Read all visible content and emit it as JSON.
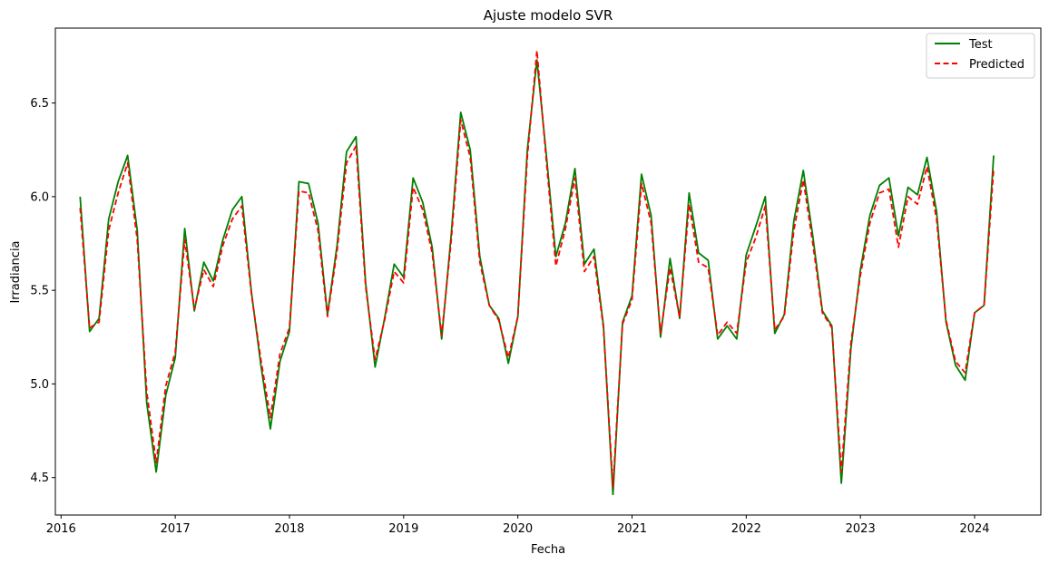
{
  "chart_data": {
    "type": "line",
    "title": "Ajuste modelo SVR",
    "xlabel": "Fecha",
    "ylabel": "Irradiancia",
    "xlim": [
      2015.95,
      2024.58
    ],
    "ylim": [
      4.3,
      6.9
    ],
    "grid": false,
    "legend": "top-right",
    "x_ticks": [
      2016,
      2017,
      2018,
      2019,
      2020,
      2021,
      2022,
      2023,
      2024
    ],
    "x_tick_labels": [
      "2016",
      "2017",
      "2018",
      "2019",
      "2020",
      "2021",
      "2022",
      "2023",
      "2024"
    ],
    "y_ticks": [
      4.5,
      5.0,
      5.5,
      6.0,
      6.5
    ],
    "y_tick_labels": [
      "4.5",
      "5.0",
      "5.5",
      "6.0",
      "6.5"
    ],
    "x": [
      2016.167,
      2016.25,
      2016.333,
      2016.417,
      2016.5,
      2016.583,
      2016.667,
      2016.75,
      2016.833,
      2016.917,
      2017.0,
      2017.083,
      2017.167,
      2017.25,
      2017.333,
      2017.417,
      2017.5,
      2017.583,
      2017.667,
      2017.75,
      2017.833,
      2017.917,
      2018.0,
      2018.083,
      2018.167,
      2018.25,
      2018.333,
      2018.417,
      2018.5,
      2018.583,
      2018.667,
      2018.75,
      2018.833,
      2018.917,
      2019.0,
      2019.083,
      2019.167,
      2019.25,
      2019.333,
      2019.417,
      2019.5,
      2019.583,
      2019.667,
      2019.75,
      2019.833,
      2019.917,
      2020.0,
      2020.083,
      2020.167,
      2020.25,
      2020.333,
      2020.417,
      2020.5,
      2020.583,
      2020.667,
      2020.75,
      2020.833,
      2020.917,
      2021.0,
      2021.083,
      2021.167,
      2021.25,
      2021.333,
      2021.417,
      2021.5,
      2021.583,
      2021.667,
      2021.75,
      2021.833,
      2021.917,
      2022.0,
      2022.083,
      2022.167,
      2022.25,
      2022.333,
      2022.417,
      2022.5,
      2022.583,
      2022.667,
      2022.75,
      2022.833,
      2022.917,
      2023.0,
      2023.083,
      2023.167,
      2023.25,
      2023.333,
      2023.417,
      2023.5,
      2023.583,
      2023.667,
      2023.75,
      2023.833,
      2023.917,
      2024.0,
      2024.083,
      2024.167
    ],
    "series": [
      {
        "name": "Test",
        "color": "#008000",
        "style": "solid",
        "values": [
          6.0,
          5.28,
          5.35,
          5.88,
          6.08,
          6.22,
          5.82,
          4.9,
          4.53,
          4.94,
          5.14,
          5.83,
          5.39,
          5.65,
          5.55,
          5.77,
          5.93,
          6.0,
          5.49,
          5.1,
          4.76,
          5.12,
          5.28,
          6.08,
          6.07,
          5.86,
          5.37,
          5.74,
          6.24,
          6.32,
          5.54,
          5.09,
          5.35,
          5.64,
          5.57,
          6.1,
          5.97,
          5.73,
          5.24,
          5.8,
          6.45,
          6.25,
          5.68,
          5.42,
          5.35,
          5.11,
          5.36,
          6.25,
          6.73,
          6.22,
          5.68,
          5.86,
          6.15,
          5.64,
          5.72,
          5.31,
          4.41,
          5.33,
          5.47,
          6.12,
          5.9,
          5.25,
          5.67,
          5.35,
          6.02,
          5.7,
          5.66,
          5.24,
          5.31,
          5.24,
          5.69,
          5.84,
          6.0,
          5.27,
          5.37,
          5.87,
          6.14,
          5.79,
          5.39,
          5.31,
          4.47,
          5.19,
          5.61,
          5.9,
          6.06,
          6.1,
          5.79,
          6.05,
          6.01,
          6.21,
          5.92,
          5.33,
          5.1,
          5.02,
          5.38,
          5.42,
          6.22
        ]
      },
      {
        "name": "Predicted",
        "color": "#ff0000",
        "style": "dashed",
        "values": [
          5.94,
          5.3,
          5.33,
          5.82,
          6.02,
          6.18,
          5.77,
          4.96,
          4.58,
          4.99,
          5.17,
          5.77,
          5.4,
          5.61,
          5.52,
          5.74,
          5.88,
          5.95,
          5.48,
          5.13,
          4.82,
          5.16,
          5.3,
          6.03,
          6.02,
          5.82,
          5.36,
          5.71,
          6.18,
          6.27,
          5.52,
          5.13,
          5.34,
          5.6,
          5.54,
          6.05,
          5.93,
          5.7,
          5.26,
          5.77,
          6.41,
          6.21,
          5.65,
          5.42,
          5.34,
          5.14,
          5.36,
          6.21,
          6.78,
          6.19,
          5.63,
          5.83,
          6.1,
          5.6,
          5.68,
          5.3,
          4.45,
          5.32,
          5.45,
          6.07,
          5.86,
          5.27,
          5.62,
          5.36,
          5.96,
          5.65,
          5.62,
          5.26,
          5.33,
          5.27,
          5.65,
          5.78,
          5.95,
          5.29,
          5.36,
          5.82,
          6.09,
          5.75,
          5.38,
          5.3,
          4.53,
          5.22,
          5.58,
          5.86,
          6.02,
          6.04,
          5.73,
          6.0,
          5.96,
          6.16,
          5.88,
          5.34,
          5.12,
          5.06,
          5.38,
          5.42,
          6.15
        ]
      }
    ]
  }
}
